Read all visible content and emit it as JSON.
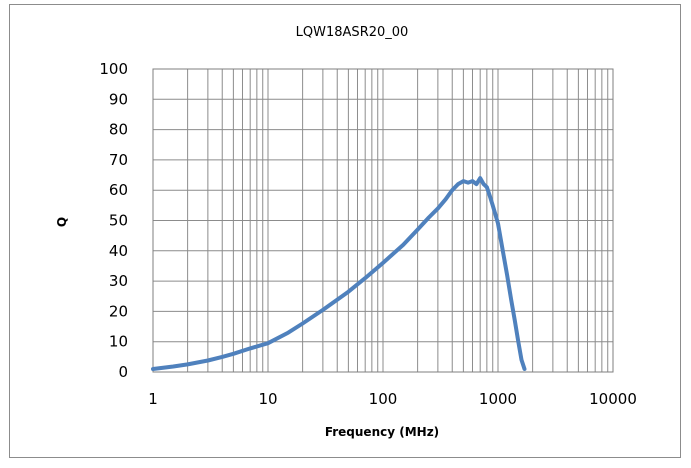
{
  "chart_data": {
    "type": "line",
    "title": "LQW18ASR20_00",
    "xlabel": "Frequency (MHz)",
    "ylabel": "Q",
    "x_scale": "log",
    "xlim": [
      1,
      10000
    ],
    "ylim": [
      0,
      100
    ],
    "x_ticks": [
      "1",
      "10",
      "100",
      "1000",
      "10000"
    ],
    "y_ticks": [
      "0",
      "10",
      "20",
      "30",
      "40",
      "50",
      "60",
      "70",
      "80",
      "90",
      "100"
    ],
    "grid": true,
    "legend": "none",
    "series_color": "#4f81bd",
    "series": [
      {
        "x": [
          1,
          1.5,
          2,
          3,
          4,
          5,
          7,
          10,
          15,
          20,
          30,
          50,
          70,
          100,
          150,
          200,
          250,
          300,
          350,
          400,
          450,
          500,
          550,
          600,
          650,
          700,
          750,
          800,
          850,
          900,
          950,
          1000,
          1100,
          1200,
          1300,
          1400,
          1500,
          1600,
          1700
        ],
        "y": [
          1,
          1.8,
          2.5,
          3.8,
          5,
          6,
          7.8,
          9.5,
          13,
          16,
          20.5,
          26.5,
          31,
          36,
          42,
          47,
          51,
          54,
          57,
          60,
          62,
          63,
          62.5,
          63,
          62,
          64,
          62,
          61,
          58,
          55,
          52,
          49,
          40,
          32,
          24,
          17,
          10,
          4,
          1
        ]
      }
    ]
  }
}
